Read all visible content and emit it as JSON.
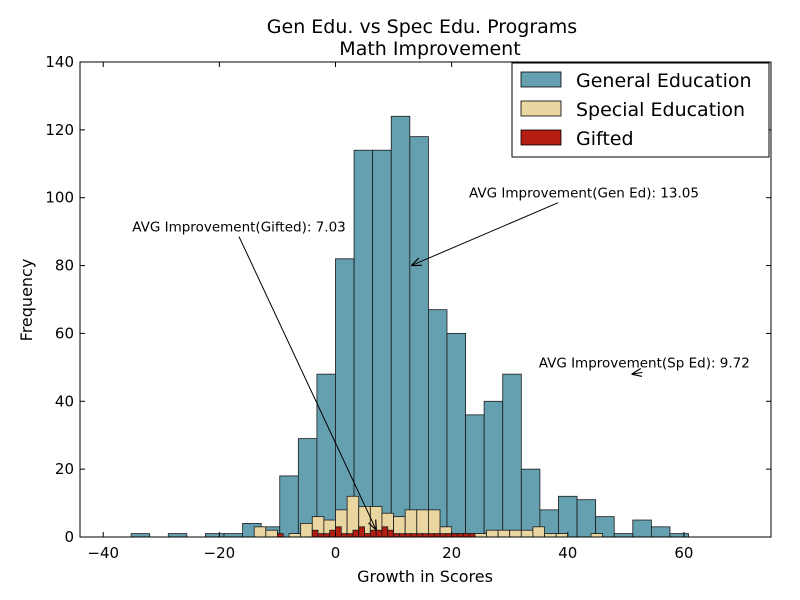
{
  "chart_data": {
    "type": "bar",
    "title": "Gen Edu. vs Spec Edu. Programs",
    "subtitle": "Math Improvement",
    "xlabel": "Growth in Scores",
    "ylabel": "Frequency",
    "xlim": [
      -44,
      75
    ],
    "ylim": [
      0,
      140
    ],
    "x_ticks": [
      -40,
      -20,
      0,
      20,
      40,
      60
    ],
    "x_tick_labels": [
      "−40",
      "−20",
      "0",
      "20",
      "40",
      "60"
    ],
    "y_ticks": [
      0,
      20,
      40,
      60,
      80,
      100,
      120,
      140
    ],
    "y_tick_labels": [
      "0",
      "20",
      "40",
      "60",
      "80",
      "100",
      "120",
      "140"
    ],
    "grid": false,
    "legend_position": "top-right",
    "series": [
      {
        "name": "General Education",
        "color": "#64a0b0",
        "edges": [
          -35.2,
          -32,
          -28.8,
          -25.6,
          -22.4,
          -19.2,
          -16,
          -12.8,
          -9.6,
          -6.4,
          -3.2,
          0,
          3.2,
          6.4,
          9.6,
          12.8,
          16,
          19.2,
          22.4,
          25.6,
          28.8,
          32,
          35.2,
          38.4,
          41.6,
          44.8,
          48,
          51.2,
          54.4,
          57.6,
          60.8
        ],
        "values": [
          1,
          0,
          1,
          0,
          1,
          1,
          4,
          3,
          18,
          29,
          48,
          82,
          114,
          114,
          124,
          118,
          67,
          60,
          36,
          40,
          48,
          20,
          8,
          12,
          11,
          6,
          1,
          5,
          3,
          1
        ]
      },
      {
        "name": "Special Education",
        "color": "#ead6a0",
        "edges": [
          -14,
          -12,
          -10,
          -8,
          -6,
          -4,
          -2,
          0,
          2,
          4,
          6,
          8,
          10,
          12,
          14,
          16,
          18,
          20,
          22,
          24,
          26,
          28,
          30,
          32,
          34,
          36,
          38,
          40,
          42,
          44,
          46,
          48
        ],
        "values": [
          3,
          2,
          0,
          1,
          4,
          6,
          5,
          8,
          12,
          9,
          9,
          7,
          6,
          8,
          8,
          8,
          3,
          1,
          1,
          1,
          2,
          2,
          2,
          2,
          3,
          1,
          1,
          0,
          0,
          1,
          0
        ]
      },
      {
        "name": "Gifted",
        "color": "#b31d12",
        "edges": [
          -10,
          -9,
          -8,
          -7,
          -6,
          -5,
          -4,
          -3,
          -2,
          -1,
          0,
          1,
          2,
          3,
          4,
          5,
          6,
          7,
          8,
          9,
          10,
          11,
          12,
          13,
          14,
          15,
          16,
          17,
          18,
          19,
          20,
          21,
          22,
          23,
          24
        ],
        "values": [
          1,
          0,
          0,
          0,
          0,
          0,
          2,
          1,
          1,
          2,
          3,
          1,
          1,
          2,
          3,
          1,
          2,
          2,
          3,
          2,
          1,
          1,
          1,
          1,
          1,
          1,
          1,
          1,
          1,
          1,
          1,
          1,
          1,
          1
        ]
      }
    ],
    "annotations": [
      {
        "text": "AVG Improvement(Gen Ed): 13.05",
        "text_at": [
          23,
          100
        ],
        "arrow_to": [
          13.05,
          80
        ]
      },
      {
        "text": "AVG Improvement(Gifted): 7.03",
        "text_at": [
          -35,
          90
        ],
        "arrow_to": [
          7.03,
          2
        ]
      },
      {
        "text": "AVG Improvement(Sp Ed): 9.72",
        "text_at": [
          35,
          50
        ],
        "arrow_to": [
          51,
          48
        ]
      }
    ]
  }
}
